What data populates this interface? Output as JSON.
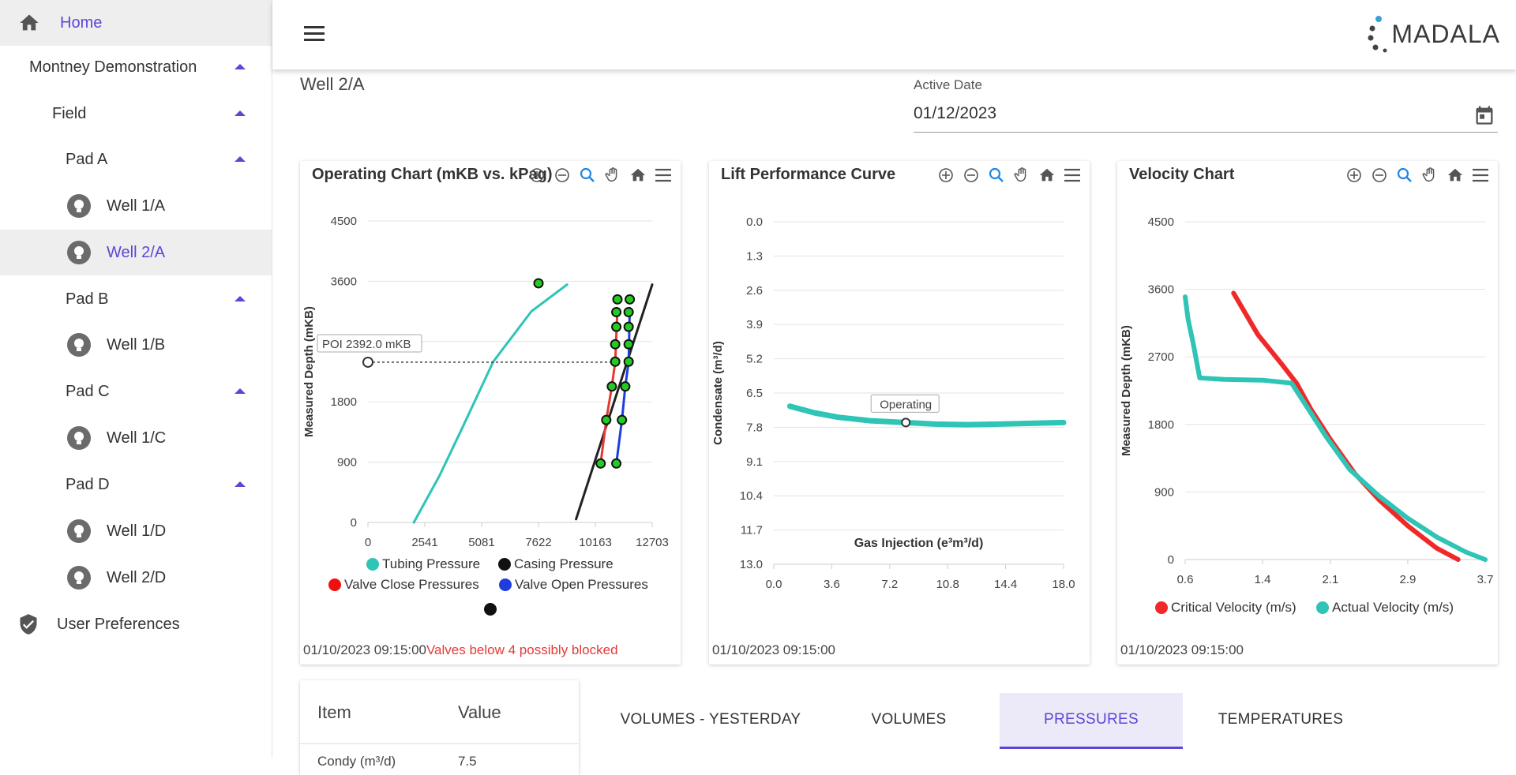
{
  "sidebar": {
    "home": "Home",
    "montney": "Montney Demonstration",
    "field": "Field",
    "pad_a": "Pad A",
    "well_1a": "Well 1/A",
    "well_2a": "Well 2/A",
    "pad_b": "Pad B",
    "well_1b": "Well 1/B",
    "pad_c": "Pad C",
    "well_1c": "Well 1/C",
    "pad_d": "Pad D",
    "well_1d": "Well 1/D",
    "well_2d": "Well 2/D",
    "user_prefs": "User Preferences"
  },
  "header": {
    "logo": "MADALA"
  },
  "main": {
    "well_title": "Well 2/A",
    "active_date_label": "Active Date",
    "active_date_value": "01/12/2023"
  },
  "charts": {
    "operating": {
      "title": "Operating Chart (mKB vs. kPag)",
      "footer_time": "01/10/2023 09:15:00",
      "footer_warning": "Valves below 4 possibly blocked",
      "poi_label": "POI 2392.0 mKB"
    },
    "lift": {
      "title": "Lift Performance Curve",
      "footer_time": "01/10/2023 09:15:00",
      "operating_label": "Operating"
    },
    "velocity": {
      "title": "Velocity Chart",
      "footer_time": "01/10/2023 09:15:00"
    }
  },
  "chart_data": [
    {
      "type": "line",
      "title": "Operating Chart (mKB vs. kPag)",
      "xlabel": "",
      "ylabel": "Measured Depth (mKB)",
      "xlim": [
        0,
        12703
      ],
      "ylim": [
        4500,
        0
      ],
      "x_ticks": [
        "0",
        "2541",
        "5081",
        "7622",
        "10163",
        "12703"
      ],
      "y_ticks": [
        "0",
        "900",
        "1800",
        "2700",
        "3600",
        "4500"
      ],
      "legend": [
        "Tubing Pressure",
        "Casing Pressure",
        "Valve Close Pressures",
        "Valve Open Pressures"
      ],
      "series": [
        {
          "name": "Tubing Pressure",
          "color": "#2ec4b6",
          "points": [
            [
              2050,
              0
            ],
            [
              3200,
              700
            ],
            [
              4200,
              1400
            ],
            [
              5600,
              2400
            ],
            [
              7300,
              3150
            ],
            [
              8900,
              3550
            ]
          ]
        },
        {
          "name": "Casing Pressure",
          "color": "#222222",
          "points": [
            [
              9300,
              50
            ],
            [
              12703,
              3550
            ]
          ]
        },
        {
          "name": "Valve Close Pressures",
          "color": "#e53935",
          "points": [
            [
              10400,
              880
            ],
            [
              10650,
              1530
            ],
            [
              10900,
              2030
            ],
            [
              11050,
              2400
            ],
            [
              11150,
              3200
            ]
          ]
        },
        {
          "name": "Valve Open Pressures",
          "color": "#1e3de0",
          "points": [
            [
              11100,
              880
            ],
            [
              11350,
              1530
            ],
            [
              11500,
              2030
            ],
            [
              11650,
              2400
            ],
            [
              11700,
              3200
            ]
          ]
        }
      ],
      "valves": [
        {
          "x": 10400,
          "y": 880
        },
        {
          "x": 11100,
          "y": 880
        },
        {
          "x": 10650,
          "y": 1530
        },
        {
          "x": 11350,
          "y": 1530
        },
        {
          "x": 10900,
          "y": 2030
        },
        {
          "x": 11500,
          "y": 2030
        },
        {
          "x": 11050,
          "y": 2400
        },
        {
          "x": 11650,
          "y": 2400
        },
        {
          "x": 11050,
          "y": 2660
        },
        {
          "x": 11650,
          "y": 2660
        },
        {
          "x": 11100,
          "y": 2920
        },
        {
          "x": 11650,
          "y": 2920
        },
        {
          "x": 11100,
          "y": 3140
        },
        {
          "x": 11650,
          "y": 3140
        },
        {
          "x": 11150,
          "y": 3330
        },
        {
          "x": 11700,
          "y": 3330
        },
        {
          "x": 7622,
          "y": 3570
        }
      ],
      "poi": {
        "x": 0,
        "y": 2392
      }
    },
    {
      "type": "line",
      "title": "Lift Performance Curve",
      "xlabel": "Gas Injection (e³m³/d)",
      "ylabel": "Condensate (m³/d)",
      "xlim": [
        0,
        18
      ],
      "ylim": [
        0,
        13
      ],
      "x_ticks": [
        "0.0",
        "3.6",
        "7.2",
        "10.8",
        "14.4",
        "18.0"
      ],
      "y_ticks": [
        "0.0",
        "1.3",
        "2.6",
        "3.9",
        "5.2",
        "6.5",
        "7.8",
        "9.1",
        "10.4",
        "11.7",
        "13.0"
      ],
      "series": [
        {
          "color": "#2ec4b6",
          "points": [
            [
              1,
              7.0
            ],
            [
              2.5,
              7.25
            ],
            [
              4,
              7.42
            ],
            [
              6,
              7.55
            ],
            [
              8.2,
              7.62
            ],
            [
              10,
              7.68
            ],
            [
              12,
              7.7
            ],
            [
              14,
              7.68
            ],
            [
              16,
              7.65
            ],
            [
              18,
              7.62
            ]
          ]
        }
      ],
      "operating_point": {
        "x": 8.2,
        "y": 7.62
      }
    },
    {
      "type": "line",
      "title": "Velocity Chart",
      "xlabel": "",
      "ylabel": "Measured Depth (mKB)",
      "xlim": [
        0.6,
        3.7
      ],
      "ylim": [
        4500,
        0
      ],
      "x_ticks": [
        "0.6",
        "1.4",
        "2.1",
        "2.9",
        "3.7"
      ],
      "y_ticks": [
        "0",
        "900",
        "1800",
        "2700",
        "3600",
        "4500"
      ],
      "legend": [
        "Critical Velocity (m/s)",
        "Actual Velocity (m/s)"
      ],
      "series": [
        {
          "name": "Critical Velocity (m/s)",
          "color": "#f02828",
          "points": [
            [
              1.1,
              3550
            ],
            [
              1.35,
              3000
            ],
            [
              1.6,
              2600
            ],
            [
              1.75,
              2350
            ],
            [
              1.9,
              2000
            ],
            [
              2.1,
              1600
            ],
            [
              2.35,
              1150
            ],
            [
              2.6,
              800
            ],
            [
              2.9,
              450
            ],
            [
              3.2,
              150
            ],
            [
              3.42,
              0
            ]
          ]
        },
        {
          "name": "Actual Velocity (m/s)",
          "color": "#2ec4b6",
          "points": [
            [
              0.6,
              3500
            ],
            [
              0.63,
              3200
            ],
            [
              0.68,
              2900
            ],
            [
              0.75,
              2420
            ],
            [
              1.0,
              2400
            ],
            [
              1.4,
              2390
            ],
            [
              1.7,
              2350
            ],
            [
              1.85,
              2050
            ],
            [
              2.05,
              1650
            ],
            [
              2.3,
              1200
            ],
            [
              2.6,
              850
            ],
            [
              2.9,
              550
            ],
            [
              3.2,
              300
            ],
            [
              3.5,
              100
            ],
            [
              3.7,
              0
            ]
          ]
        }
      ]
    }
  ],
  "bottom": {
    "table_headers": [
      "Item",
      "Value"
    ],
    "row_item": "Condy (m³/d)",
    "row_value": "7.5",
    "tabs": [
      "VOLUMES - YESTERDAY",
      "VOLUMES",
      "PRESSURES",
      "TEMPERATURES"
    ]
  },
  "colors": {
    "accent": "#5b46d6",
    "teal": "#2ec4b6",
    "red": "#e53935",
    "blue": "#1e3de0"
  }
}
